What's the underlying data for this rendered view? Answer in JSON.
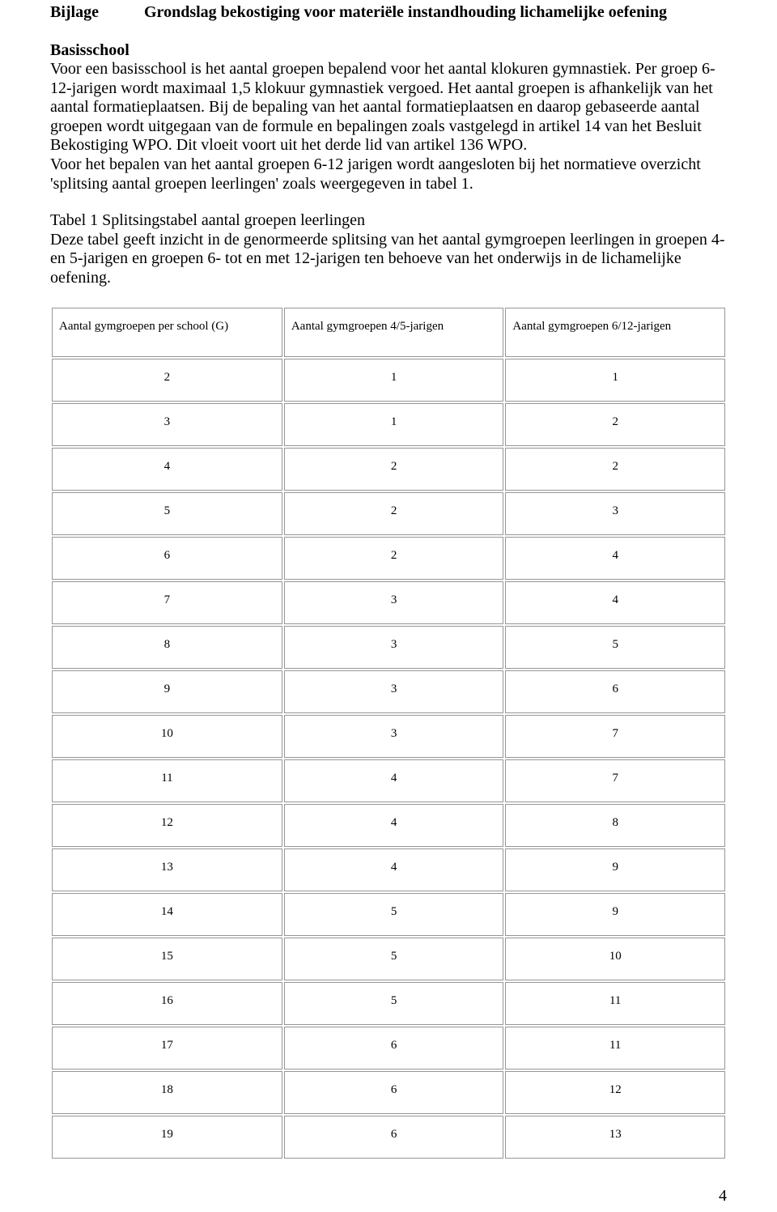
{
  "header": {
    "label": "Bijlage",
    "title": "Grondslag bekostiging voor materiële instandhouding lichamelijke oefening"
  },
  "section": {
    "heading": "Basisschool",
    "paragraph1": "Voor een basisschool is het aantal groepen bepalend voor het aantal klokuren gymnastiek. Per groep 6-12-jarigen wordt maximaal 1,5 klokuur gymnastiek vergoed. Het aantal groepen is afhankelijk van het aantal formatieplaatsen. Bij de bepaling van het aantal formatieplaatsen en daarop gebaseerde aantal groepen wordt uitgegaan van de formule en bepalingen zoals vastgelegd in artikel 14 van het Besluit Bekostiging WPO. Dit vloeit voort uit het derde lid van artikel 136 WPO.",
    "paragraph2": "Voor het bepalen van het aantal groepen 6-12 jarigen wordt aangesloten bij het normatieve overzicht 'splitsing aantal groepen leerlingen' zoals weergegeven in tabel 1.",
    "paragraph3_title": "Tabel 1 Splitsingstabel aantal groepen leerlingen",
    "paragraph3_body": "Deze tabel geeft inzicht in de genormeerde splitsing van het aantal gymgroepen leerlingen in groepen 4- en 5-jarigen en groepen 6- tot en met 12-jarigen ten behoeve van het onderwijs in de lichamelijke oefening."
  },
  "table": {
    "columns": [
      "Aantal gymgroepen per school (G)",
      "Aantal gymgroepen 4/5-jarigen",
      "Aantal gymgroepen 6/12-jarigen"
    ],
    "rows": [
      [
        "2",
        "1",
        "1"
      ],
      [
        "3",
        "1",
        "2"
      ],
      [
        "4",
        "2",
        "2"
      ],
      [
        "5",
        "2",
        "3"
      ],
      [
        "6",
        "2",
        "4"
      ],
      [
        "7",
        "3",
        "4"
      ],
      [
        "8",
        "3",
        "5"
      ],
      [
        "9",
        "3",
        "6"
      ],
      [
        "10",
        "3",
        "7"
      ],
      [
        "11",
        "4",
        "7"
      ],
      [
        "12",
        "4",
        "8"
      ],
      [
        "13",
        "4",
        "9"
      ],
      [
        "14",
        "5",
        "9"
      ],
      [
        "15",
        "5",
        "10"
      ],
      [
        "16",
        "5",
        "11"
      ],
      [
        "17",
        "6",
        "11"
      ],
      [
        "18",
        "6",
        "12"
      ],
      [
        "19",
        "6",
        "13"
      ]
    ],
    "border_color": "#969696",
    "header_fontsize": 15,
    "cell_fontsize": 15
  },
  "page_number": "4",
  "colors": {
    "text": "#000000",
    "background": "#ffffff"
  }
}
